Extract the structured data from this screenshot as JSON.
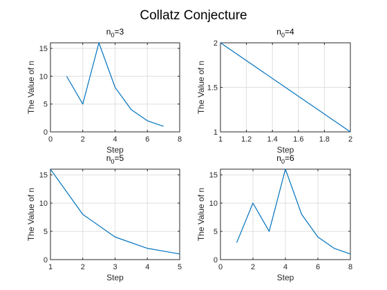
{
  "figure": {
    "title": "Collatz Conjecture",
    "line_color": "#0072BD"
  },
  "chart_data": [
    {
      "type": "line",
      "title": "n0=3",
      "title_main": "n",
      "title_sub": "0",
      "title_rest": "=3",
      "xlabel": "Step",
      "ylabel": "The Value of n",
      "xlim": [
        0,
        8
      ],
      "ylim": [
        0,
        16
      ],
      "xticks": [
        0,
        2,
        4,
        6,
        8
      ],
      "yticks": [
        0,
        5,
        10,
        15
      ],
      "xtick_labels": [
        "0",
        "2",
        "4",
        "6",
        "8"
      ],
      "ytick_labels": [
        "0",
        "5",
        "10",
        "15"
      ],
      "grid": true,
      "series": [
        {
          "x": [
            1,
            2,
            3,
            4,
            5,
            6,
            7
          ],
          "y": [
            10,
            5,
            16,
            8,
            4,
            2,
            1
          ]
        }
      ]
    },
    {
      "type": "line",
      "title": "n0=4",
      "title_main": "n",
      "title_sub": "0",
      "title_rest": "=4",
      "xlabel": "Step",
      "ylabel": "The Value of n",
      "xlim": [
        1,
        2
      ],
      "ylim": [
        1,
        2
      ],
      "xticks": [
        1,
        1.2,
        1.4,
        1.6,
        1.8,
        2
      ],
      "yticks": [
        1,
        1.5,
        2
      ],
      "xtick_labels": [
        "1",
        "1.2",
        "1.4",
        "1.6",
        "1.8",
        "2"
      ],
      "ytick_labels": [
        "1",
        "1.5",
        "2"
      ],
      "grid": true,
      "series": [
        {
          "x": [
            1,
            2
          ],
          "y": [
            2,
            1
          ]
        }
      ]
    },
    {
      "type": "line",
      "title": "n0=5",
      "title_main": "n",
      "title_sub": "0",
      "title_rest": "=5",
      "xlabel": "Step",
      "ylabel": "The Value of n",
      "xlim": [
        1,
        5
      ],
      "ylim": [
        0,
        16
      ],
      "xticks": [
        1,
        2,
        3,
        4,
        5
      ],
      "yticks": [
        0,
        5,
        10,
        15
      ],
      "xtick_labels": [
        "1",
        "2",
        "3",
        "4",
        "5"
      ],
      "ytick_labels": [
        "0",
        "5",
        "10",
        "15"
      ],
      "grid": true,
      "series": [
        {
          "x": [
            1,
            2,
            3,
            4,
            5
          ],
          "y": [
            16,
            8,
            4,
            2,
            1
          ]
        }
      ]
    },
    {
      "type": "line",
      "title": "n0=6",
      "title_main": "n",
      "title_sub": "0",
      "title_rest": "=6",
      "xlabel": "Step",
      "ylabel": "The Value of n",
      "xlim": [
        0,
        8
      ],
      "ylim": [
        0,
        16
      ],
      "xticks": [
        0,
        2,
        4,
        6,
        8
      ],
      "yticks": [
        0,
        5,
        10,
        15
      ],
      "xtick_labels": [
        "0",
        "2",
        "4",
        "6",
        "8"
      ],
      "ytick_labels": [
        "0",
        "5",
        "10",
        "15"
      ],
      "grid": true,
      "series": [
        {
          "x": [
            1,
            2,
            3,
            4,
            5,
            6,
            7,
            8
          ],
          "y": [
            3,
            10,
            5,
            16,
            8,
            4,
            2,
            1
          ]
        }
      ]
    }
  ]
}
